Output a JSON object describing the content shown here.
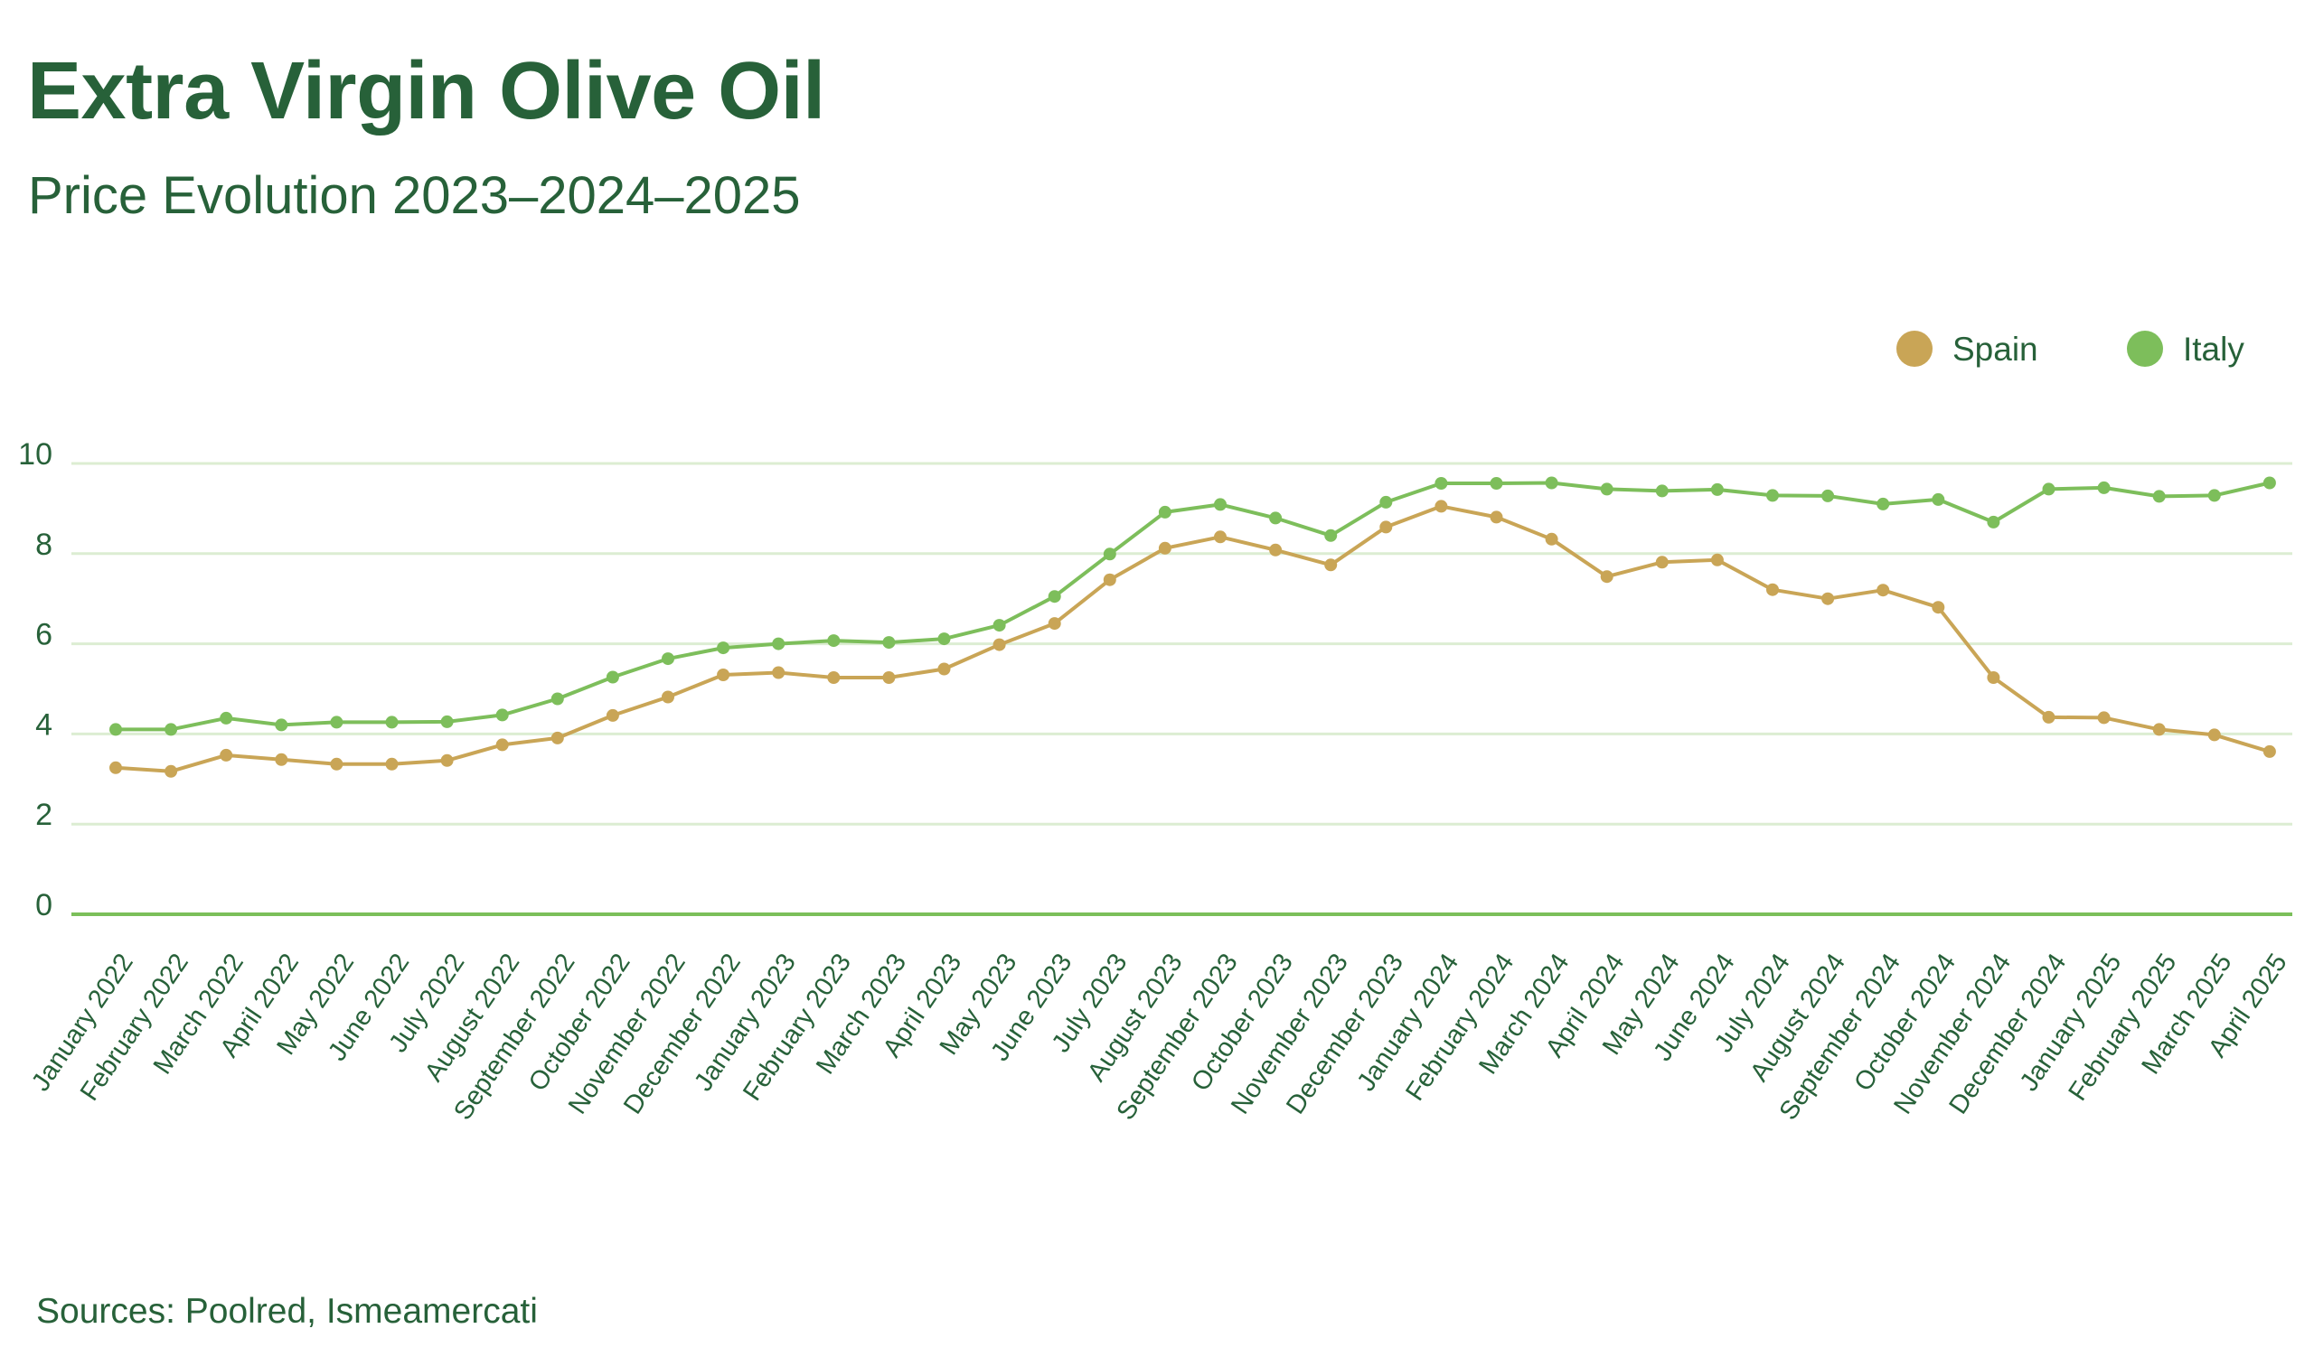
{
  "header": {
    "title": "Extra Virgin Olive Oil",
    "subtitle": "Price Evolution 2023–2024–2025"
  },
  "legend": [
    {
      "label": "Spain",
      "color": "#C9A556"
    },
    {
      "label": "Italy",
      "color": "#7DBE5B"
    }
  ],
  "footer": {
    "sources": "Sources: Poolred, Ismeamercati"
  },
  "colors": {
    "text": "#276139",
    "grid": "#DCEDD2",
    "baseline": "#7BBF5A"
  },
  "chart_data": {
    "type": "line",
    "title": "Extra Virgin Olive Oil",
    "subtitle": "Price Evolution 2023–2024–2025",
    "xlabel": "",
    "ylabel": "",
    "ylim": [
      0,
      10
    ],
    "yticks": [
      0,
      2,
      4,
      6,
      8,
      10
    ],
    "grid": true,
    "legend_position": "top-right",
    "categories": [
      "January 2022",
      "February 2022",
      "March 2022",
      "April 2022",
      "May 2022",
      "June 2022",
      "July 2022",
      "August 2022",
      "September 2022",
      "October 2022",
      "November 2022",
      "December 2022",
      "January 2023",
      "February 2023",
      "March 2023",
      "April 2023",
      "May 2023",
      "June 2023",
      "July 2023",
      "August 2023",
      "September 2023",
      "October 2023",
      "November 2023",
      "December 2023",
      "January 2024",
      "February 2024",
      "March 2024",
      "April 2024",
      "May 2024",
      "June 2024",
      "July 2024",
      "August 2024",
      "September 2024",
      "October 2024",
      "November 2024",
      "December 2024",
      "January 2025",
      "February 2025",
      "March 2025",
      "April 2025"
    ],
    "series": [
      {
        "name": "Spain",
        "color": "#C9A556",
        "values": [
          3.25,
          3.17,
          3.53,
          3.43,
          3.33,
          3.33,
          3.41,
          3.76,
          3.91,
          4.41,
          4.82,
          5.31,
          5.36,
          5.25,
          5.25,
          5.44,
          5.98,
          6.45,
          7.42,
          8.12,
          8.37,
          8.08,
          7.75,
          8.59,
          9.05,
          8.81,
          8.32,
          7.49,
          7.81,
          7.86,
          7.2,
          7.0,
          7.19,
          6.81,
          5.25,
          4.37,
          4.36,
          4.1,
          3.98,
          3.61
        ]
      },
      {
        "name": "Italy",
        "color": "#7DBE5B",
        "values": [
          4.1,
          4.1,
          4.35,
          4.2,
          4.26,
          4.26,
          4.27,
          4.42,
          4.78,
          5.26,
          5.67,
          5.91,
          6.0,
          6.07,
          6.03,
          6.11,
          6.41,
          7.05,
          7.99,
          8.92,
          9.09,
          8.79,
          8.4,
          9.14,
          9.56,
          9.56,
          9.57,
          9.43,
          9.39,
          9.42,
          9.29,
          9.28,
          9.1,
          9.2,
          8.7,
          9.43,
          9.46,
          9.27,
          9.29,
          9.57
        ]
      }
    ]
  }
}
